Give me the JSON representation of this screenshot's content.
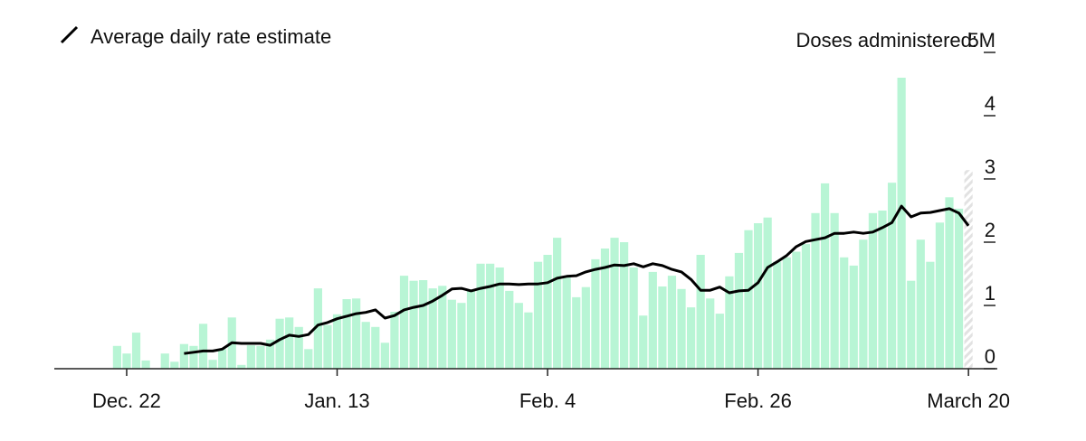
{
  "chart_data": {
    "type": "bar",
    "y_label": "Doses administered:",
    "categories": [
      null,
      "Dec. 22",
      null,
      null,
      null,
      null,
      null,
      null,
      null,
      null,
      null,
      null,
      null,
      null,
      null,
      null,
      null,
      null,
      null,
      null,
      null,
      null,
      null,
      "Jan. 13",
      null,
      null,
      null,
      null,
      null,
      null,
      null,
      null,
      null,
      null,
      null,
      null,
      null,
      null,
      null,
      null,
      null,
      null,
      null,
      null,
      null,
      "Feb. 4",
      null,
      null,
      null,
      null,
      null,
      null,
      null,
      null,
      null,
      null,
      null,
      null,
      null,
      null,
      null,
      null,
      null,
      null,
      null,
      null,
      null,
      "Feb. 26",
      null,
      null,
      null,
      null,
      null,
      null,
      null,
      null,
      null,
      null,
      null,
      null,
      null,
      null,
      null,
      null,
      null,
      null,
      null,
      null,
      null,
      "March 20"
    ],
    "series": [
      {
        "color": "#b8f5d5",
        "values": [
          0.36,
          0.24,
          0.57,
          0.13,
          0,
          0.24,
          0.11,
          0.39,
          0.36,
          0.71,
          0.14,
          0.31,
          0.81,
          0.06,
          0.37,
          0.36,
          0.46,
          0.79,
          0.81,
          0.66,
          0.31,
          1.27,
          0.69,
          0.86,
          1.1,
          1.11,
          0.74,
          0.66,
          0.41,
          0.9,
          1.47,
          1.39,
          1.4,
          1.27,
          1.31,
          1.09,
          1.04,
          1.23,
          1.66,
          1.66,
          1.6,
          1.23,
          1.04,
          0.89,
          1.69,
          1.8,
          2.07,
          1.44,
          1.13,
          1.29,
          1.73,
          1.9,
          2.07,
          2.0,
          1.6,
          0.84,
          1.53,
          1.3,
          1.47,
          1.26,
          0.97,
          1.8,
          1.11,
          0.87,
          1.46,
          1.83,
          2.19,
          2.3,
          2.39,
          1.69,
          1.76,
          1.85,
          1.97,
          2.46,
          2.93,
          2.46,
          1.76,
          1.63,
          2.04,
          2.46,
          2.5,
          2.94,
          4.6,
          1.39,
          2.04,
          1.69,
          2.31,
          2.71,
          2.53,
          null
        ]
      },
      {
        "color": "#e2e2e2",
        "hatched": true,
        "values": [
          null,
          null,
          null,
          null,
          null,
          null,
          null,
          null,
          null,
          null,
          null,
          null,
          null,
          null,
          null,
          null,
          null,
          null,
          null,
          null,
          null,
          null,
          null,
          null,
          null,
          null,
          null,
          null,
          null,
          null,
          null,
          null,
          null,
          null,
          null,
          null,
          null,
          null,
          null,
          null,
          null,
          null,
          null,
          null,
          null,
          null,
          null,
          null,
          null,
          null,
          null,
          null,
          null,
          null,
          null,
          null,
          null,
          null,
          null,
          null,
          null,
          null,
          null,
          null,
          null,
          null,
          null,
          null,
          null,
          null,
          null,
          null,
          null,
          null,
          null,
          null,
          null,
          null,
          null,
          null,
          null,
          null,
          null,
          null,
          null,
          null,
          null,
          null,
          null,
          3.14
        ]
      }
    ],
    "line": {
      "name": "Average daily rate estimate",
      "color": "#000000",
      "values": [
        null,
        null,
        null,
        null,
        null,
        null,
        null,
        0.24,
        0.26,
        0.28,
        0.28,
        0.31,
        0.41,
        0.4,
        0.4,
        0.4,
        0.37,
        0.46,
        0.53,
        0.51,
        0.54,
        0.69,
        0.73,
        0.79,
        0.83,
        0.87,
        0.89,
        0.93,
        0.8,
        0.84,
        0.93,
        0.97,
        1.0,
        1.07,
        1.16,
        1.26,
        1.27,
        1.23,
        1.27,
        1.3,
        1.34,
        1.34,
        1.33,
        1.34,
        1.34,
        1.36,
        1.43,
        1.46,
        1.47,
        1.53,
        1.57,
        1.6,
        1.64,
        1.63,
        1.66,
        1.61,
        1.66,
        1.63,
        1.57,
        1.53,
        1.41,
        1.24,
        1.24,
        1.29,
        1.2,
        1.23,
        1.24,
        1.36,
        1.6,
        1.69,
        1.79,
        1.93,
        2.01,
        2.04,
        2.07,
        2.14,
        2.14,
        2.16,
        2.14,
        2.16,
        2.23,
        2.31,
        2.57,
        2.4,
        2.46,
        2.47,
        2.5,
        2.53,
        2.46,
        2.26
      ]
    },
    "ylim": [
      0,
      5
    ],
    "yticks": [
      0,
      1,
      2,
      3,
      4,
      {
        "value": 5,
        "label": "5M"
      }
    ],
    "axis_color": "#222222"
  }
}
